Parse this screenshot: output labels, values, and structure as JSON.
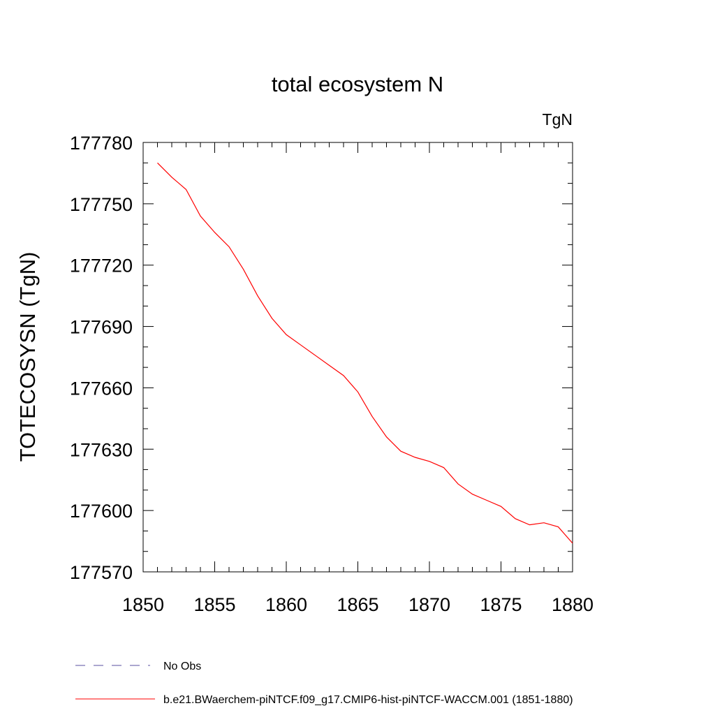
{
  "chart_data": {
    "type": "line",
    "title": "total ecosystem N",
    "units_label": "TgN",
    "ylabel": "TOTECOSYSN  (TgN)",
    "xlabel": "",
    "xlim": [
      1850,
      1880
    ],
    "ylim": [
      177570,
      177780
    ],
    "x_ticks": [
      "1850",
      "1855",
      "1860",
      "1865",
      "1870",
      "1875",
      "1880"
    ],
    "y_ticks": [
      "177570",
      "177600",
      "177630",
      "177660",
      "177690",
      "177720",
      "177750",
      "177780"
    ],
    "grid": false,
    "legend_placement": "bottom-left",
    "series": [
      {
        "name": "No Obs",
        "color": "#5a4fa0",
        "dash": "dashed",
        "x": [],
        "y": []
      },
      {
        "name": "b.e21.BWaerchem-piNTCF.f09_g17.CMIP6-hist-piNTCF-WACCM.001 (1851-1880)",
        "color": "#ff0000",
        "dash": "solid",
        "x": [
          1851,
          1852,
          1853,
          1854,
          1855,
          1856,
          1857,
          1858,
          1859,
          1860,
          1861,
          1862,
          1863,
          1864,
          1865,
          1866,
          1867,
          1868,
          1869,
          1870,
          1871,
          1872,
          1873,
          1874,
          1875,
          1876,
          1877,
          1878,
          1879,
          1880
        ],
        "y": [
          177770,
          177763,
          177757,
          177744,
          177736,
          177729,
          177718,
          177705,
          177694,
          177686,
          177681,
          177676,
          177671,
          177666,
          177658,
          177646,
          177636,
          177629,
          177626,
          177624,
          177621,
          177613,
          177608,
          177605,
          177602,
          177596,
          177593,
          177594,
          177592,
          177584
        ]
      }
    ]
  }
}
